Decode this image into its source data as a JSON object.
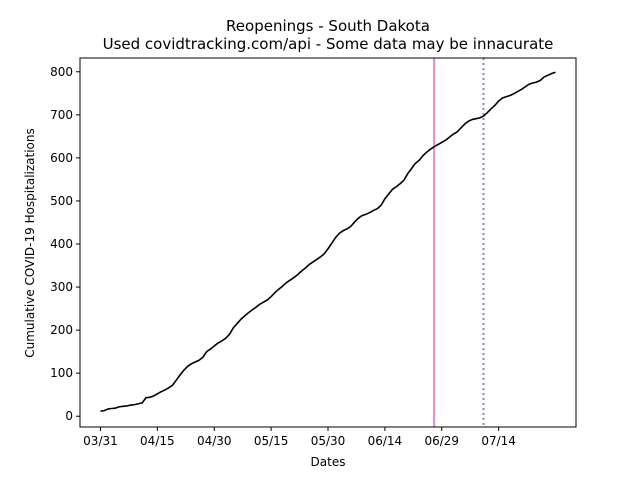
{
  "chart_data": {
    "type": "line",
    "title": "Reopenings - South Dakota",
    "subtitle": "Used covidtracking.com/api - Some data may be innacurate",
    "xlabel": "Dates",
    "ylabel": "Cumulative COVID-19 Hospitalizations",
    "x_ticks": [
      "03/31",
      "04/15",
      "04/30",
      "05/15",
      "05/30",
      "06/14",
      "06/29",
      "07/14"
    ],
    "y_ticks": [
      0,
      100,
      200,
      300,
      400,
      500,
      600,
      700,
      800
    ],
    "ylim": [
      -25,
      832
    ],
    "grid": false,
    "series": [
      {
        "color": "#000000",
        "start_date": "03/31",
        "values": [
          12,
          13,
          17,
          18,
          19,
          22,
          23,
          24,
          26,
          27,
          29,
          31,
          43,
          44,
          47,
          52,
          57,
          61,
          66,
          72,
          84,
          96,
          107,
          116,
          122,
          126,
          130,
          137,
          150,
          156,
          163,
          170,
          175,
          181,
          190,
          205,
          215,
          225,
          233,
          240,
          247,
          253,
          260,
          265,
          270,
          278,
          287,
          295,
          302,
          310,
          316,
          322,
          329,
          337,
          344,
          352,
          358,
          364,
          370,
          377,
          389,
          402,
          415,
          425,
          431,
          435,
          441,
          451,
          460,
          466,
          469,
          473,
          478,
          482,
          490,
          505,
          516,
          527,
          533,
          540,
          548,
          563,
          575,
          587,
          594,
          605,
          613,
          620,
          626,
          631,
          636,
          641,
          648,
          655,
          660,
          669,
          678,
          685,
          689,
          691,
          693,
          697,
          705,
          714,
          722,
          732,
          739,
          742,
          745,
          749,
          754,
          759,
          765,
          771,
          774,
          776,
          780,
          788,
          792,
          796,
          799
        ]
      }
    ],
    "vlines": [
      {
        "date": "06/27",
        "color": "#dd88dd",
        "style": "solid"
      },
      {
        "date": "07/10",
        "color": "#8888bb",
        "style": "dotted"
      }
    ]
  }
}
